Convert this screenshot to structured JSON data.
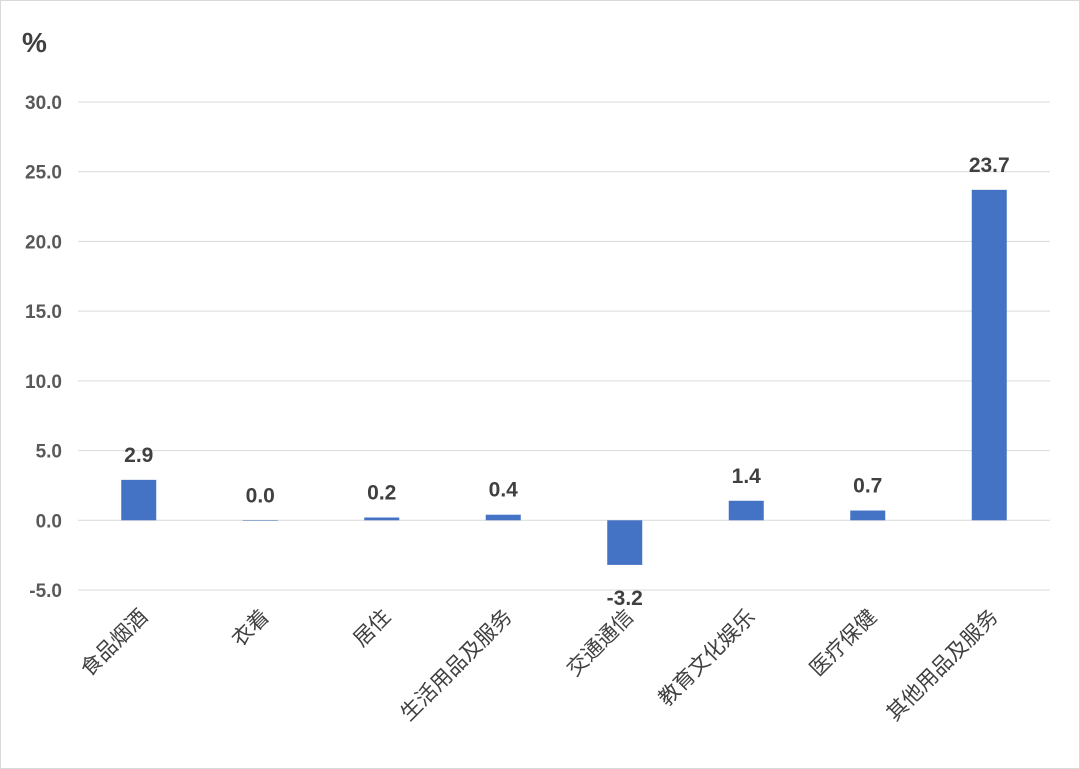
{
  "chart_data": {
    "type": "bar",
    "unit_label": "%",
    "categories": [
      "食品烟酒",
      "衣着",
      "居住",
      "生活用品及服务",
      "交通通信",
      "教育文化娱乐",
      "医疗保健",
      "其他用品及服务"
    ],
    "values": [
      2.9,
      0.0,
      0.2,
      0.4,
      -3.2,
      1.4,
      0.7,
      23.7
    ],
    "data_labels": [
      "2.9",
      "0.0",
      "0.2",
      "0.4",
      "-3.2",
      "1.4",
      "0.7",
      "23.7"
    ],
    "y_ticks": [
      "30.0",
      "25.0",
      "20.0",
      "15.0",
      "10.0",
      "5.0",
      "0.0",
      "-5.0"
    ],
    "ylim": [
      -5,
      30
    ],
    "grid": true,
    "legend": "none",
    "bar_color": "#4472c4",
    "grid_color": "#d9d9d9"
  }
}
